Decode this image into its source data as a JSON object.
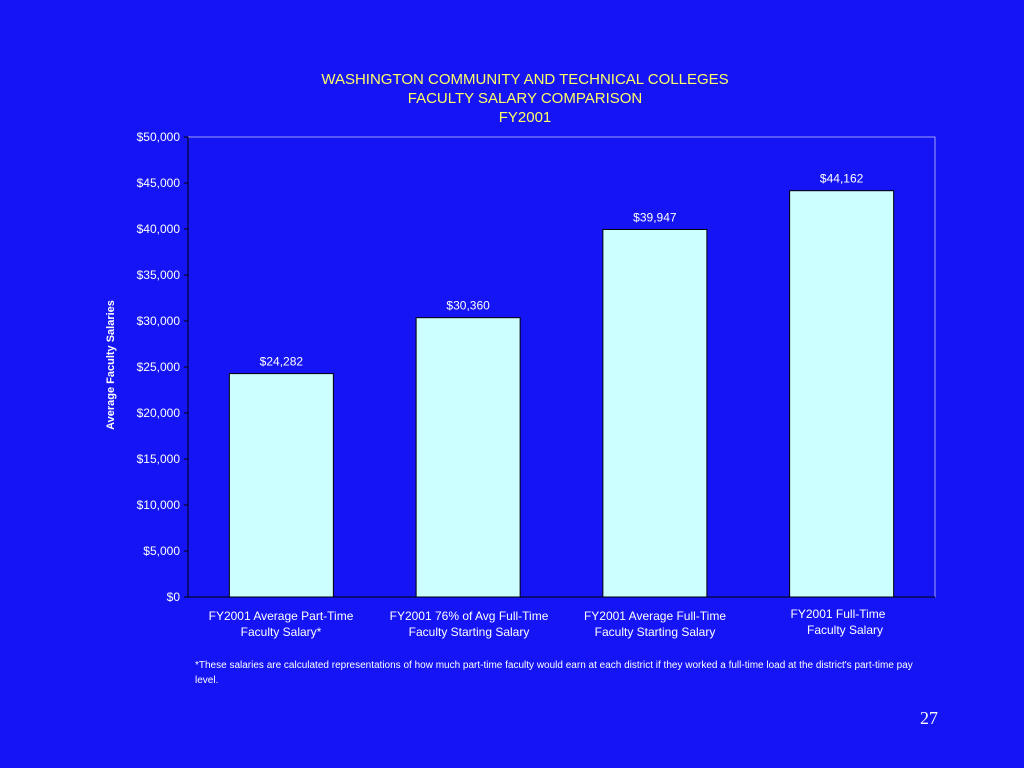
{
  "slide": {
    "footnote": "*These salaries are calculated representations of how much part-time faculty would earn at each district if they worked a full-time load at the district's part-time pay level.",
    "page_number": "27"
  },
  "colors": {
    "background": "#1414f5",
    "title": "#ffff66",
    "bar_fill": "#ccffff",
    "text": "#ffffff"
  },
  "chart_data": {
    "type": "bar",
    "title_lines": [
      "WASHINGTON COMMUNITY AND TECHNICAL COLLEGES",
      "FACULTY SALARY COMPARISON",
      "FY2001"
    ],
    "ylabel": "Average Faculty Salaries",
    "xlabel": "",
    "categories": [
      [
        "FY2001 Average Part-Time",
        "Faculty Salary*"
      ],
      [
        "FY2001 76% of Avg Full-Time",
        "Faculty Starting Salary"
      ],
      [
        "FY2001 Average Full-Time",
        "Faculty Starting Salary"
      ],
      [
        "FY2001 Full-Time",
        "Faculty Salary"
      ]
    ],
    "values": [
      24282,
      30360,
      39947,
      44162
    ],
    "value_labels": [
      "$24,282",
      "$30,360",
      "$39,947",
      "$44,162"
    ],
    "ylim": [
      0,
      50000
    ],
    "yticks": [
      0,
      5000,
      10000,
      15000,
      20000,
      25000,
      30000,
      35000,
      40000,
      45000,
      50000
    ],
    "ytick_labels": [
      "$0",
      "$5,000",
      "$10,000",
      "$15,000",
      "$20,000",
      "$25,000",
      "$30,000",
      "$35,000",
      "$40,000",
      "$45,000",
      "$50,000"
    ],
    "grid": false,
    "legend": "none"
  }
}
